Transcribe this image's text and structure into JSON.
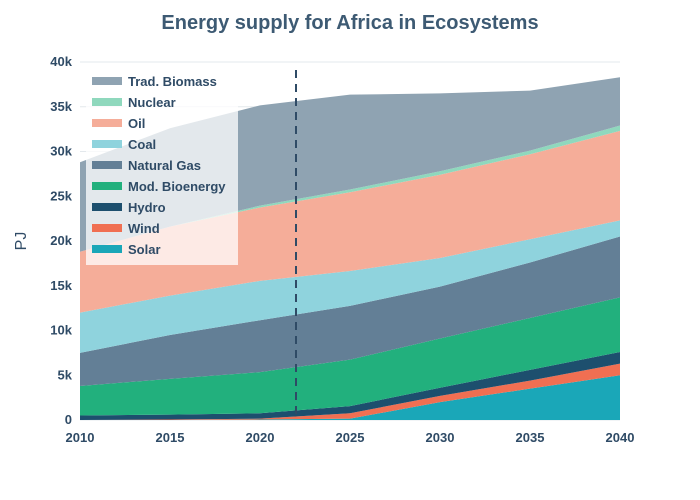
{
  "chart_data": {
    "type": "area",
    "title": "Energy supply for Africa in Ecosystems",
    "xlabel": "",
    "ylabel": "PJ",
    "x": [
      2010,
      2015,
      2020,
      2025,
      2030,
      2035,
      2040
    ],
    "x_ticks": [
      "2010",
      "2015",
      "2020",
      "2025",
      "2030",
      "2035",
      "2040"
    ],
    "ylim": [
      0,
      40000
    ],
    "y_ticks": [
      {
        "value": 0,
        "label": "0"
      },
      {
        "value": 5000,
        "label": "5k"
      },
      {
        "value": 10000,
        "label": "10k"
      },
      {
        "value": 15000,
        "label": "15k"
      },
      {
        "value": 20000,
        "label": "20k"
      },
      {
        "value": 25000,
        "label": "25k"
      },
      {
        "value": 30000,
        "label": "30k"
      },
      {
        "value": 35000,
        "label": "35k"
      },
      {
        "value": 40000,
        "label": "40k"
      }
    ],
    "stacked": true,
    "vertical_marker": {
      "x": 2022,
      "style": "dashed",
      "color": "#2f4b66"
    },
    "legend_position": "top-left",
    "series": [
      {
        "name": "Solar",
        "color": "#1aa7b8",
        "values": [
          0,
          0,
          50,
          150,
          2000,
          3500,
          5000
        ]
      },
      {
        "name": "Wind",
        "color": "#f06f52",
        "values": [
          0,
          50,
          100,
          600,
          700,
          900,
          1300
        ]
      },
      {
        "name": "Hydro",
        "color": "#1d4f6e",
        "values": [
          500,
          550,
          600,
          800,
          900,
          1200,
          1300
        ]
      },
      {
        "name": "Mod. Bioenergy",
        "color": "#22b07d",
        "values": [
          3300,
          4000,
          4600,
          5200,
          5500,
          5800,
          6100
        ]
      },
      {
        "name": "Natural Gas",
        "color": "#637f96",
        "values": [
          3700,
          4900,
          5800,
          6000,
          5800,
          6200,
          6800
        ]
      },
      {
        "name": "Coal",
        "color": "#8fd3dd",
        "values": [
          4500,
          4400,
          4400,
          3900,
          3200,
          2600,
          1800
        ]
      },
      {
        "name": "Oil",
        "color": "#f5ad99",
        "values": [
          6800,
          7700,
          8200,
          8800,
          9300,
          9500,
          10000
        ]
      },
      {
        "name": "Nuclear",
        "color": "#8fd8bd",
        "values": [
          0,
          0,
          200,
          300,
          400,
          400,
          600
        ]
      },
      {
        "name": "Trad. Biomass",
        "color": "#8fa3b2",
        "values": [
          10000,
          11000,
          11200,
          10600,
          8700,
          6700,
          5400
        ]
      }
    ],
    "legend_order": [
      "Trad. Biomass",
      "Nuclear",
      "Oil",
      "Coal",
      "Natural Gas",
      "Mod. Bioenergy",
      "Hydro",
      "Wind",
      "Solar"
    ]
  }
}
